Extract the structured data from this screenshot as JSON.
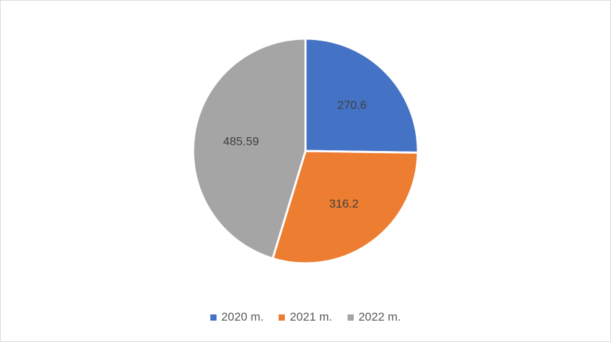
{
  "chart_data": {
    "type": "pie",
    "title": "",
    "categories": [
      "2020 m.",
      "2021 m.",
      "2022 m."
    ],
    "values": [
      270.6,
      316.2,
      485.59
    ],
    "data_labels": [
      "270.6",
      "316.2",
      "485.59"
    ],
    "colors": [
      "#4472c4",
      "#ed7d31",
      "#a5a5a5"
    ],
    "start_angle_deg": 0,
    "direction": "clockwise",
    "legend": {
      "position": "bottom",
      "entries": [
        "2020 m.",
        "2021 m.",
        "2022 m."
      ]
    }
  }
}
